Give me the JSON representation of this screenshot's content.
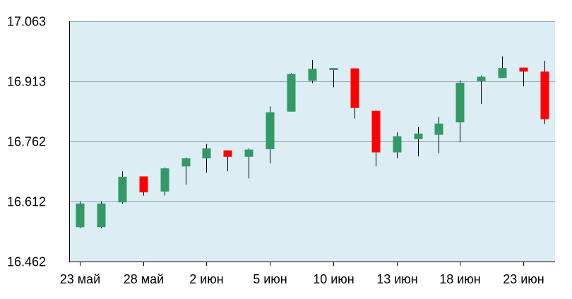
{
  "chart_data": {
    "type": "candlestick",
    "title": "",
    "xlabel": "",
    "ylabel": "",
    "grid": true,
    "colors": {
      "plot_background": "#dcedf3",
      "gridline": "#9aa8b4",
      "up": "#339966",
      "down": "#ff0000",
      "wick": "#000000"
    },
    "y_axis": {
      "min": 16.462,
      "max": 17.063,
      "ticks": [
        "17.063",
        "16.913",
        "16.762",
        "16.612",
        "16.462"
      ]
    },
    "x_axis": {
      "ticks": [
        {
          "label": "23 май",
          "index": 0
        },
        {
          "label": "28 май",
          "index": 3
        },
        {
          "label": "2 июн",
          "index": 6
        },
        {
          "label": "5 июн",
          "index": 9
        },
        {
          "label": "10 июн",
          "index": 12
        },
        {
          "label": "13 июн",
          "index": 15
        },
        {
          "label": "18 июн",
          "index": 18
        },
        {
          "label": "23 июн",
          "index": 21
        }
      ]
    },
    "series": [
      {
        "o": 16.548,
        "h": 16.612,
        "l": 16.545,
        "c": 16.607
      },
      {
        "o": 16.548,
        "h": 16.612,
        "l": 16.545,
        "c": 16.607
      },
      {
        "o": 16.61,
        "h": 16.688,
        "l": 16.607,
        "c": 16.674
      },
      {
        "o": 16.675,
        "h": 16.675,
        "l": 16.627,
        "c": 16.635
      },
      {
        "o": 16.637,
        "h": 16.697,
        "l": 16.627,
        "c": 16.695
      },
      {
        "o": 16.7,
        "h": 16.722,
        "l": 16.654,
        "c": 16.72
      },
      {
        "o": 16.72,
        "h": 16.756,
        "l": 16.684,
        "c": 16.745
      },
      {
        "o": 16.74,
        "h": 16.74,
        "l": 16.688,
        "c": 16.724
      },
      {
        "o": 16.724,
        "h": 16.745,
        "l": 16.67,
        "c": 16.742
      },
      {
        "o": 16.743,
        "h": 16.85,
        "l": 16.707,
        "c": 16.835
      },
      {
        "o": 16.837,
        "h": 16.933,
        "l": 16.837,
        "c": 16.931
      },
      {
        "o": 16.914,
        "h": 16.966,
        "l": 16.908,
        "c": 16.944
      },
      {
        "o": 16.941,
        "h": 16.946,
        "l": 16.898,
        "c": 16.946
      },
      {
        "o": 16.945,
        "h": 16.945,
        "l": 16.82,
        "c": 16.846
      },
      {
        "o": 16.839,
        "h": 16.839,
        "l": 16.7,
        "c": 16.735
      },
      {
        "o": 16.735,
        "h": 16.785,
        "l": 16.72,
        "c": 16.775
      },
      {
        "o": 16.768,
        "h": 16.798,
        "l": 16.725,
        "c": 16.782
      },
      {
        "o": 16.779,
        "h": 16.823,
        "l": 16.733,
        "c": 16.807
      },
      {
        "o": 16.81,
        "h": 16.915,
        "l": 16.76,
        "c": 16.909
      },
      {
        "o": 16.913,
        "h": 16.927,
        "l": 16.856,
        "c": 16.924
      },
      {
        "o": 16.921,
        "h": 16.975,
        "l": 16.921,
        "c": 16.946
      },
      {
        "o": 16.947,
        "h": 16.947,
        "l": 16.9,
        "c": 16.937
      },
      {
        "o": 16.937,
        "h": 16.964,
        "l": 16.806,
        "c": 16.818
      }
    ]
  }
}
